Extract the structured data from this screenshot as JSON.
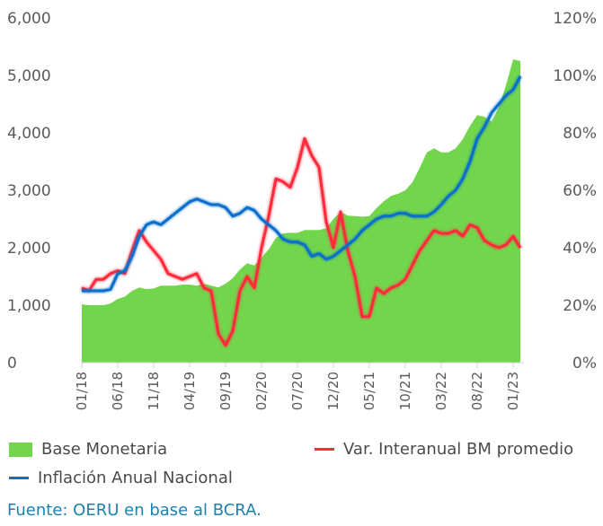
{
  "chart_data": {
    "type": "area+line",
    "title": "",
    "x_tick_labels": [
      "01/18",
      "06/18",
      "11/18",
      "04/19",
      "09/19",
      "02/20",
      "07/20",
      "12/20",
      "05/21",
      "10/21",
      "03/22",
      "08/22",
      "01/23"
    ],
    "x_start": "01/18",
    "x_end": "02/23",
    "y_left": {
      "ylim": [
        0,
        6000
      ],
      "ticks": [
        "0",
        "1,000",
        "2,000",
        "3,000",
        "4,000",
        "5,000",
        "6,000"
      ]
    },
    "y_right": {
      "ylim": [
        0,
        120
      ],
      "ticks": [
        "0%",
        "20%",
        "40%",
        "60%",
        "80%",
        "100%",
        "120%"
      ]
    },
    "grid": false,
    "legend_placement": "bottom",
    "series": [
      {
        "name": "Base Monetaria",
        "type": "area",
        "axis": "left",
        "color": "#72d64c",
        "values": [
          1015,
          1000,
          1000,
          1000,
          1030,
          1110,
          1150,
          1250,
          1310,
          1280,
          1290,
          1340,
          1340,
          1340,
          1360,
          1360,
          1340,
          1375,
          1340,
          1310,
          1375,
          1470,
          1620,
          1730,
          1690,
          1830,
          1970,
          2170,
          2250,
          2260,
          2260,
          2310,
          2310,
          2310,
          2340,
          2500,
          2625,
          2560,
          2550,
          2540,
          2550,
          2690,
          2810,
          2900,
          2940,
          3000,
          3140,
          3390,
          3660,
          3730,
          3660,
          3660,
          3730,
          3890,
          4120,
          4310,
          4280,
          4200,
          4440,
          4830,
          5280,
          5250
        ]
      },
      {
        "name": "Var. Interanual BM promedio",
        "type": "line",
        "axis": "right",
        "color": "#ff2a3a",
        "values": [
          26,
          25,
          29,
          29,
          31,
          32,
          31,
          39,
          46,
          42,
          39,
          36,
          31,
          30,
          29,
          30,
          31,
          26,
          25,
          10,
          6,
          11,
          25,
          30,
          26,
          40,
          51,
          64,
          63,
          61,
          68,
          78,
          72,
          68,
          49,
          40,
          52.5,
          39,
          30,
          16,
          16,
          26,
          24,
          26,
          27,
          29,
          34,
          39,
          42.5,
          46,
          45,
          45,
          46,
          44,
          48,
          47,
          42.5,
          41,
          40,
          41,
          44,
          40
        ]
      },
      {
        "name": "Inflación Anual Nacional",
        "type": "line",
        "axis": "right",
        "color": "#0a6ecb",
        "values": [
          25,
          25,
          25,
          25,
          25.5,
          31,
          32,
          37,
          44,
          48,
          49,
          48,
          50,
          52,
          54,
          56,
          57,
          56,
          55,
          55,
          54,
          51,
          52,
          54,
          53,
          50,
          48,
          46,
          43,
          42,
          42,
          41,
          37,
          38,
          36,
          37,
          39,
          41,
          43,
          46,
          48,
          50,
          51,
          51,
          52,
          52,
          51,
          51,
          51,
          52.5,
          55,
          58,
          60,
          64,
          70,
          78,
          82,
          87,
          90,
          93,
          95,
          99.7
        ]
      }
    ]
  },
  "legend": {
    "base": "Base Monetaria",
    "var": "Var. Interanual BM promedio",
    "inflacion": "Inflación Anual Nacional"
  },
  "source": "Fuente: OERU en base al BCRA."
}
